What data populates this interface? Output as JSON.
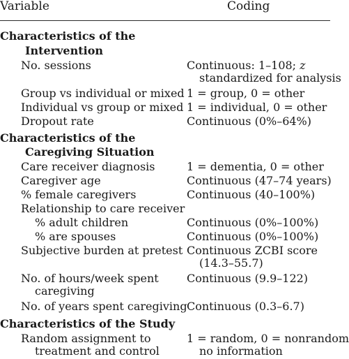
{
  "header": {
    "variable": "Variable",
    "coding": "Coding"
  },
  "sections": [
    {
      "title": [
        "Characteristics of the",
        "Intervention"
      ],
      "rows": [
        {
          "variable": [
            "No. sessions"
          ],
          "coding": [
            "Continuous: 1–108; ",
            "z",
            "standardized for analysis"
          ]
        },
        {
          "variable": [
            "Group vs individual or mixed"
          ],
          "coding": [
            "1 = group, 0 = other"
          ]
        },
        {
          "variable": [
            "Individual vs group or mixed"
          ],
          "coding": [
            "1 = individual, 0 = other"
          ]
        },
        {
          "variable": [
            "Dropout rate"
          ],
          "coding": [
            "Continuous (0%–64%)"
          ]
        }
      ]
    },
    {
      "title": [
        "Characteristics of the",
        "Caregiving Situation"
      ],
      "rows": [
        {
          "variable": [
            "Care receiver diagnosis"
          ],
          "coding": [
            "1 = dementia, 0 = other"
          ]
        },
        {
          "variable": [
            "Caregiver age"
          ],
          "coding": [
            "Continuous (47–74 years)"
          ]
        },
        {
          "variable": [
            "% female caregivers"
          ],
          "coding": [
            "Continuous (40–100%)"
          ]
        },
        {
          "variable": [
            "Relationship to care receiver"
          ],
          "coding": []
        },
        {
          "variable": [
            "% adult children"
          ],
          "coding": [
            "Continuous (0%–100%)"
          ]
        },
        {
          "variable": [
            "% are spouses"
          ],
          "coding": [
            "Continuous (0%–100%)"
          ]
        },
        {
          "variable": [
            "Subjective burden at pretest"
          ],
          "coding": [
            "Continuous ZCBI score",
            "(14.3–55.7)"
          ]
        },
        {
          "variable": [
            "No. of hours/week spent",
            "caregiving"
          ],
          "coding": [
            "Continuous (9.9–122)"
          ]
        },
        {
          "variable": [
            "No. of years spent caregiving"
          ],
          "coding": [
            "Continuous (0.3–6.7)"
          ]
        }
      ]
    },
    {
      "title": [
        "Characteristics of the Study"
      ],
      "rows": [
        {
          "variable": [
            "Random assignment to",
            "treatment and control"
          ],
          "coding": [
            "1 = random, 0 = nonrandom",
            "no information"
          ]
        }
      ]
    }
  ]
}
